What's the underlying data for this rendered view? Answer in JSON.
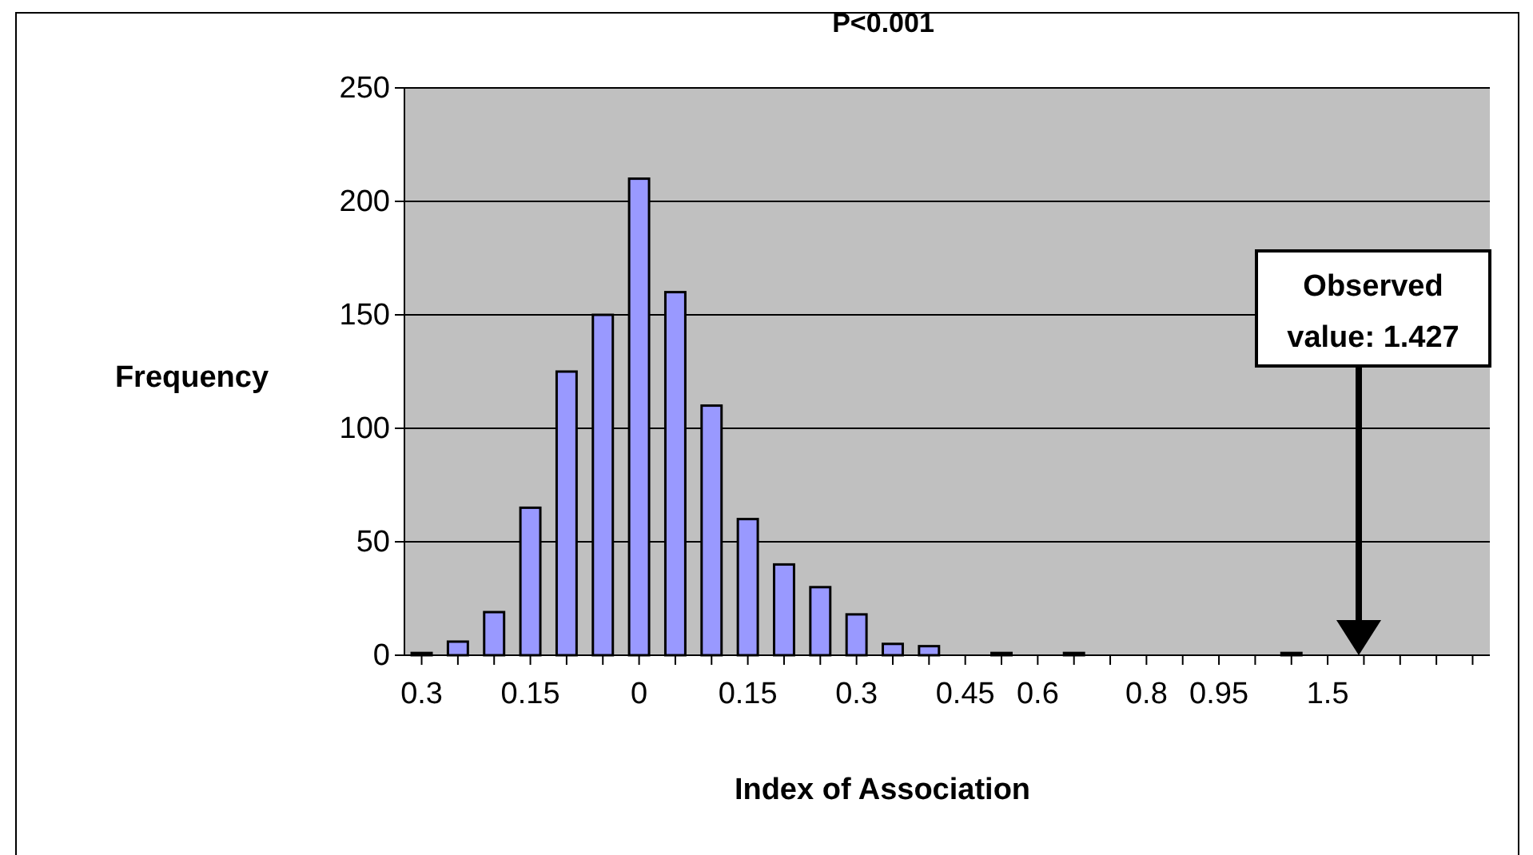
{
  "chart_data": {
    "type": "bar",
    "title": "P<0.001",
    "xlabel": "Index of Association",
    "ylabel": "Frequency",
    "categories": [
      "0.3",
      null,
      null,
      "0.15",
      null,
      null,
      "0",
      null,
      null,
      "0.15",
      null,
      null,
      "0.3",
      null,
      null,
      "0.45",
      null,
      "0.6",
      null,
      null,
      "0.8",
      null,
      "0.95",
      null,
      null,
      "1.5",
      null,
      null,
      null,
      null
    ],
    "values": [
      1,
      6,
      19,
      65,
      125,
      150,
      210,
      160,
      110,
      60,
      40,
      30,
      18,
      5,
      4,
      0,
      1,
      0,
      1,
      0,
      0,
      0,
      0,
      0,
      1,
      0,
      0,
      0,
      0,
      0
    ],
    "color": "#9999ff",
    "ylim": [
      0,
      250
    ],
    "yticks": [
      0,
      50,
      100,
      150,
      200,
      250
    ],
    "grid": "y",
    "annotations": [
      "Observed value: 1.427"
    ]
  }
}
